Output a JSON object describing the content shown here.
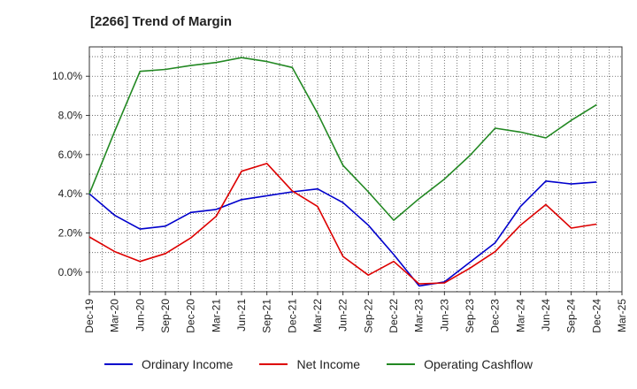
{
  "chart_data": {
    "type": "line",
    "title": "[2266]  Trend of Margin",
    "x": [
      "Dec-19",
      "Mar-20",
      "Jun-20",
      "Sep-20",
      "Dec-20",
      "Mar-21",
      "Jun-21",
      "Sep-21",
      "Dec-21",
      "Mar-22",
      "Jun-22",
      "Sep-22",
      "Dec-22",
      "Mar-23",
      "Jun-23",
      "Sep-23",
      "Dec-23",
      "Mar-24",
      "Jun-24",
      "Sep-24",
      "Dec-24",
      "Mar-25"
    ],
    "y_ticks": [
      "0.0%",
      "2.0%",
      "4.0%",
      "6.0%",
      "8.0%",
      "10.0%"
    ],
    "ylim": [
      -1.0,
      11.5
    ],
    "grid": true,
    "legend_position": "bottom",
    "series": [
      {
        "name": "Ordinary Income",
        "color": "#0000cc",
        "values": [
          4.0,
          2.9,
          2.2,
          2.35,
          3.05,
          3.2,
          3.7,
          3.9,
          4.1,
          4.25,
          3.55,
          2.4,
          0.9,
          -0.7,
          -0.5,
          0.5,
          1.5,
          3.35,
          4.65,
          4.5,
          4.6,
          null
        ]
      },
      {
        "name": "Net Income",
        "color": "#dd0000",
        "values": [
          1.8,
          1.05,
          0.55,
          0.95,
          1.75,
          2.85,
          5.15,
          5.55,
          4.15,
          3.35,
          0.8,
          -0.15,
          0.55,
          -0.6,
          -0.55,
          0.2,
          1.05,
          2.4,
          3.45,
          2.25,
          2.45,
          null
        ]
      },
      {
        "name": "Operating Cashflow",
        "color": "#228822",
        "values": [
          4.0,
          7.2,
          10.25,
          10.35,
          10.55,
          10.7,
          10.95,
          10.75,
          10.45,
          8.1,
          5.45,
          4.1,
          2.65,
          3.75,
          4.75,
          5.95,
          7.35,
          7.15,
          6.85,
          7.75,
          8.55,
          null
        ]
      }
    ]
  }
}
